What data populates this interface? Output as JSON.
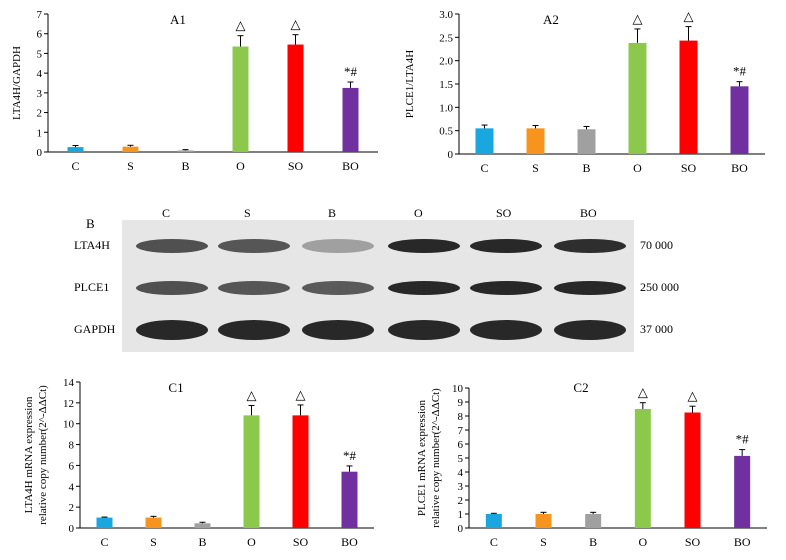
{
  "charts": {
    "A1": {
      "title": "A1",
      "type": "bar",
      "categories": [
        "C",
        "S",
        "B",
        "O",
        "SO",
        "BO"
      ],
      "values": [
        0.25,
        0.27,
        0.08,
        5.35,
        5.45,
        3.25
      ],
      "errors": [
        0.08,
        0.07,
        0.04,
        0.55,
        0.5,
        0.3
      ],
      "annotations": [
        "",
        "",
        "",
        "△",
        "△",
        "*#"
      ],
      "ylabel": "LTA4H/GAPDH",
      "ylim": [
        0,
        7
      ],
      "yticks": [
        0,
        1,
        2,
        3,
        4,
        5,
        6,
        7
      ],
      "ytick_labels": [
        "0",
        "1",
        "2",
        "3",
        "4",
        "5",
        "6",
        "7"
      ]
    },
    "A2": {
      "title": "A2",
      "type": "bar",
      "categories": [
        "C",
        "S",
        "B",
        "O",
        "SO",
        "BO"
      ],
      "values": [
        0.55,
        0.55,
        0.53,
        2.38,
        2.43,
        1.45
      ],
      "errors": [
        0.07,
        0.06,
        0.06,
        0.3,
        0.3,
        0.1
      ],
      "annotations": [
        "",
        "",
        "",
        "△",
        "△",
        "*#"
      ],
      "ylabel": "PLCE1/LTA4H",
      "ylim": [
        0,
        3
      ],
      "yticks": [
        0,
        0.5,
        1,
        1.5,
        2,
        2.5,
        3
      ],
      "ytick_labels": [
        "0",
        "0.5",
        "1.0",
        "1.5",
        "2.0",
        "2.5",
        "3.0"
      ]
    },
    "C1": {
      "title": "C1",
      "type": "bar",
      "categories": [
        "C",
        "S",
        "B",
        "O",
        "SO",
        "BO"
      ],
      "values": [
        1.0,
        1.0,
        0.45,
        10.8,
        10.8,
        5.4
      ],
      "errors": [
        0.05,
        0.12,
        0.1,
        0.95,
        1.0,
        0.55
      ],
      "annotations": [
        "",
        "",
        "",
        "△",
        "△",
        "*#"
      ],
      "ylabel_line1": "LTA4H mRNA expression",
      "ylabel_line2": "relative copy number(2^-ΔΔCt)",
      "ylim": [
        0,
        14
      ],
      "yticks": [
        0,
        2,
        4,
        6,
        8,
        10,
        12,
        14
      ],
      "ytick_labels": [
        "0",
        "2",
        "4",
        "6",
        "8",
        "10",
        "12",
        "14"
      ]
    },
    "C2": {
      "title": "C2",
      "type": "bar",
      "categories": [
        "C",
        "S",
        "B",
        "O",
        "SO",
        "BO"
      ],
      "values": [
        1.0,
        1.0,
        1.0,
        8.5,
        8.25,
        5.15
      ],
      "errors": [
        0.05,
        0.12,
        0.12,
        0.45,
        0.45,
        0.45
      ],
      "annotations": [
        "",
        "",
        "",
        "△",
        "△",
        "*#"
      ],
      "ylabel_line1": "PLCE1 mRNA expression",
      "ylabel_line2": "relative copy number(2^-ΔΔCt)",
      "ylim": [
        0,
        10
      ],
      "yticks": [
        0,
        1,
        2,
        3,
        4,
        5,
        6,
        7,
        8,
        9,
        10
      ],
      "ytick_labels": [
        "0",
        "1",
        "2",
        "3",
        "4",
        "5",
        "6",
        "7",
        "8",
        "9",
        "10"
      ]
    }
  },
  "colors": [
    "#1aa7e0",
    "#f7941d",
    "#a0a0a0",
    "#8cc84b",
    "#ff0000",
    "#7030a0"
  ],
  "blot": {
    "panel_label": "B",
    "lanes": [
      "C",
      "S",
      "B",
      "O",
      "SO",
      "BO"
    ],
    "rows": [
      {
        "label": "LTA4H",
        "size": "70 000",
        "intensity": [
          0.75,
          0.72,
          0.35,
          0.95,
          0.95,
          0.92
        ]
      },
      {
        "label": "PLCE1",
        "size": "250 000",
        "intensity": [
          0.75,
          0.72,
          0.7,
          0.95,
          0.95,
          0.95
        ]
      },
      {
        "label": "GAPDH",
        "size": "37 000",
        "intensity": [
          0.95,
          0.95,
          0.95,
          0.95,
          0.95,
          0.95
        ]
      }
    ]
  }
}
